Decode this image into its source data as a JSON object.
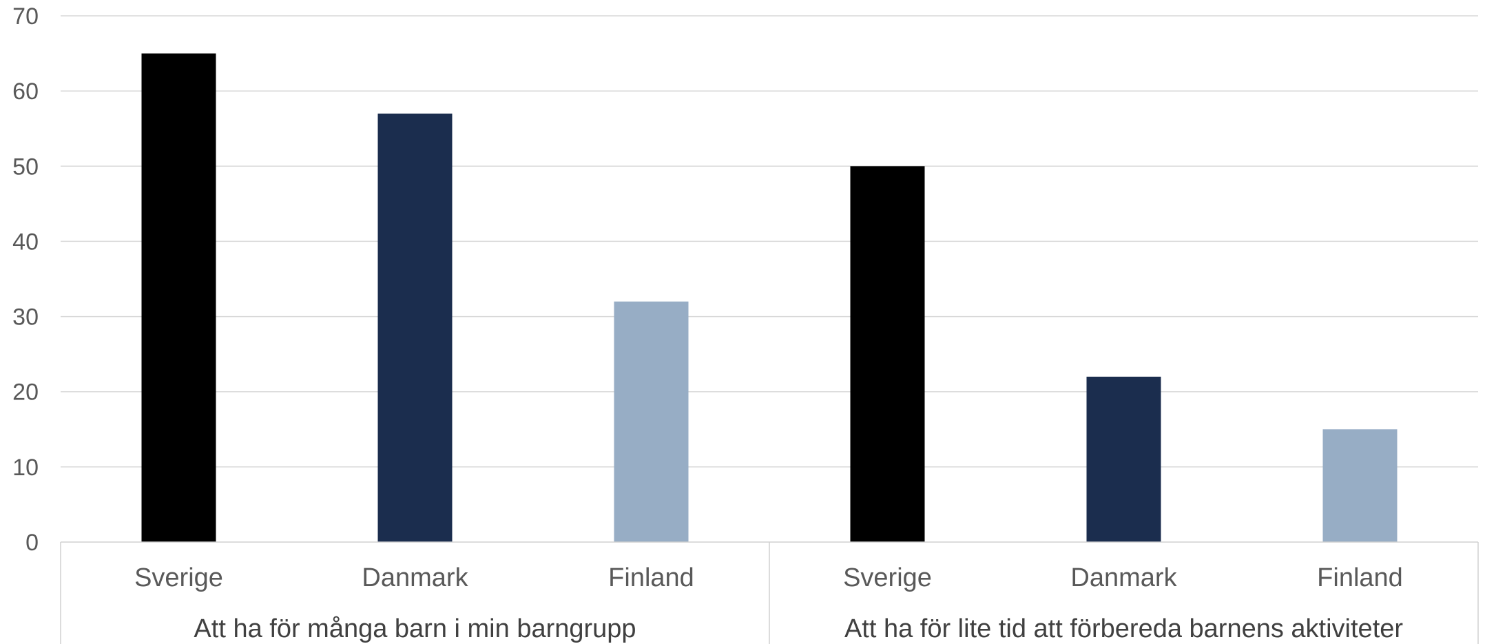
{
  "chart_data": {
    "type": "bar",
    "title": "",
    "xlabel": "",
    "ylabel": "",
    "ylim": [
      0,
      70
    ],
    "yticks": [
      0,
      10,
      20,
      30,
      40,
      50,
      60,
      70
    ],
    "grid": true,
    "legend": "none",
    "groups": [
      {
        "label": "Att ha för många barn i min barngrupp",
        "bars": [
          {
            "category": "Sverige",
            "value": 65,
            "color": "#000000"
          },
          {
            "category": "Danmark",
            "value": 57,
            "color": "#1b2d4e"
          },
          {
            "category": "Finland",
            "value": 32,
            "color": "#97adc5"
          }
        ]
      },
      {
        "label": "Att ha för lite tid att förbereda barnens aktiviteter",
        "bars": [
          {
            "category": "Sverige",
            "value": 50,
            "color": "#000000"
          },
          {
            "category": "Danmark",
            "value": 22,
            "color": "#1b2d4e"
          },
          {
            "category": "Finland",
            "value": 15,
            "color": "#97adc5"
          }
        ]
      }
    ]
  }
}
